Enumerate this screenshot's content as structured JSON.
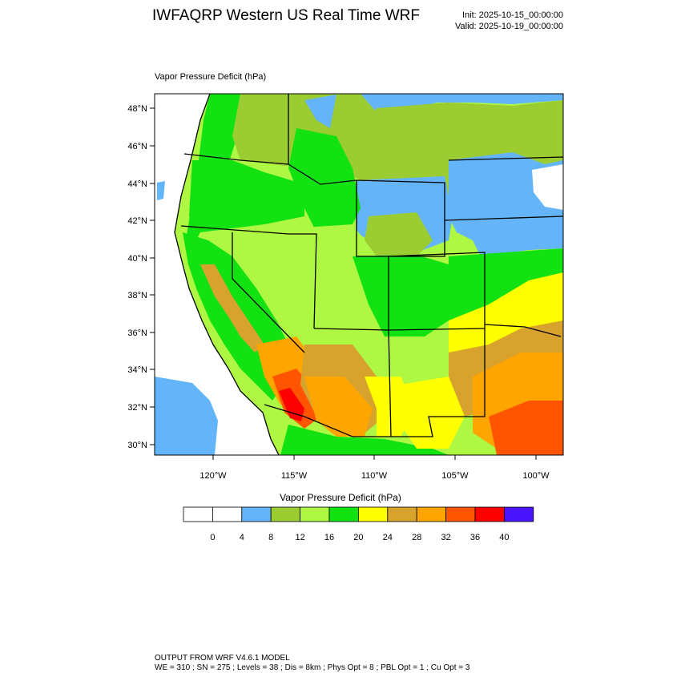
{
  "header": {
    "title": "IWFAQRP Western US Real Time WRF",
    "init": "Init: 2025-10-15_00:00:00",
    "valid": "Valid: 2025-10-19_00:00:00"
  },
  "field": {
    "name": "Vapor Pressure Deficit",
    "units": "(hPa)",
    "label": "Vapor Pressure Deficit   (hPa)"
  },
  "map": {
    "lat_labels": [
      "30°N",
      "32°N",
      "34°N",
      "36°N",
      "38°N",
      "40°N",
      "42°N",
      "44°N",
      "46°N",
      "48°N"
    ],
    "lon_labels": [
      "120°W",
      "115°W",
      "110°W",
      "105°W",
      "100°W"
    ]
  },
  "colorbar": {
    "title": "Vapor Pressure Deficit  (hPa)",
    "colors": [
      "#ffffff",
      "#ffffff",
      "#64b4f9",
      "#9bcc32",
      "#aef742",
      "#12e212",
      "#ffff00",
      "#d7a32d",
      "#ffa500",
      "#ff5500",
      "#ff0000",
      "#4b14ff"
    ],
    "tick_labels": [
      "0",
      "4",
      "8",
      "12",
      "16",
      "20",
      "24",
      "28",
      "32",
      "36",
      "40"
    ]
  },
  "footer": {
    "line1": "OUTPUT FROM WRF V4.6.1 MODEL",
    "line2": "WE = 310 ; SN = 275 ; Levels = 38 ; Dis = 8km ; Phys Opt = 8 ; PBL Opt = 1 ; Cu Opt = 3"
  }
}
